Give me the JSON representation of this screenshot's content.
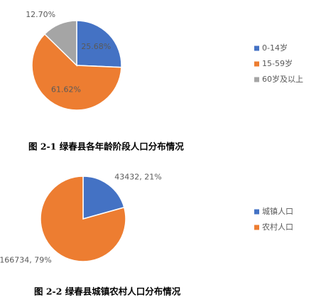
{
  "chart_data": [
    {
      "type": "pie",
      "title": "图 2-1 绿春县各年龄阶段人口分布情况",
      "categories": [
        "0-14岁",
        "15-59岁",
        "60岁及以上"
      ],
      "values": [
        25.68,
        61.62,
        12.7
      ],
      "value_labels": [
        "25.68%",
        "61.62%",
        "12.70%"
      ],
      "colors": [
        "#4472c4",
        "#ed7d31",
        "#a5a5a5"
      ],
      "label_position": "inside"
    },
    {
      "type": "pie",
      "title": "图 2-2 绿春县城镇农村人口分布情况",
      "categories": [
        "城镇人口",
        "农村人口"
      ],
      "values": [
        43432,
        166734
      ],
      "value_labels": [
        "43432, 21%",
        "166734, 79%"
      ],
      "colors": [
        "#4472c4",
        "#ed7d31"
      ],
      "label_position": "outside"
    }
  ]
}
